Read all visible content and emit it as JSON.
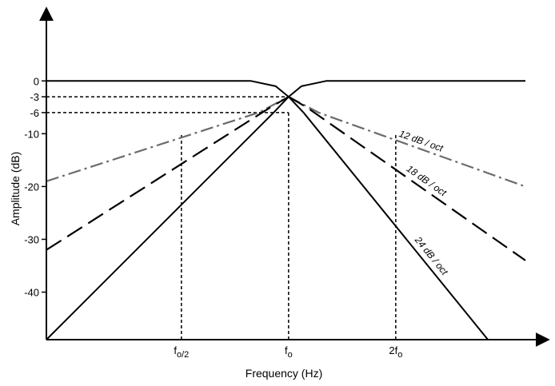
{
  "chart_data": {
    "type": "line",
    "title": "",
    "xlabel": "Frequency (Hz)",
    "ylabel": "Amplitude (dB)",
    "x_unit": "octaves relative to fo",
    "xlim": [
      -2.26,
      2.21
    ],
    "ylim": [
      -49,
      7
    ],
    "y_ticks": [
      {
        "value": 0,
        "label": "0"
      },
      {
        "value": -3,
        "label": "-3"
      },
      {
        "value": -6,
        "label": "-6"
      },
      {
        "value": -10,
        "label": "-10"
      },
      {
        "value": -20,
        "label": "-20"
      },
      {
        "value": -30,
        "label": "-30"
      },
      {
        "value": -40,
        "label": "-40"
      }
    ],
    "x_ticks": [
      {
        "value": -1,
        "base": "f",
        "sub": "o/2"
      },
      {
        "value": 0,
        "base": "f",
        "sub": "o"
      },
      {
        "value": 1,
        "base": "2f",
        "sub": "o"
      }
    ],
    "reference_lines": [
      {
        "orientation": "horizontal",
        "y": -3,
        "x_from": -2.26,
        "x_to": 0
      },
      {
        "orientation": "horizontal",
        "y": -6,
        "x_from": -2.26,
        "x_to": 0
      },
      {
        "orientation": "vertical",
        "x": -1,
        "y_from": -49,
        "y_to": -10
      },
      {
        "orientation": "vertical",
        "x": 0,
        "y_from": -49,
        "y_to": -6
      },
      {
        "orientation": "vertical",
        "x": 1,
        "y_from": -49,
        "y_to": -10
      }
    ],
    "series": [
      {
        "kind": "highpass",
        "slope": 12,
        "style": "dashdot",
        "color": "#6b6b6b",
        "x": [
          -2.26,
          -0.28,
          0
        ],
        "y": [
          -19.0,
          -6.0,
          -3.0
        ]
      },
      {
        "kind": "highpass",
        "slope": 18,
        "style": "longdash",
        "color": "#000000",
        "x": [
          -2.26,
          -0.17,
          0
        ],
        "y": [
          -32.0,
          -5.0,
          -3.0
        ]
      },
      {
        "kind": "highpass",
        "slope": 24,
        "style": "solid",
        "color": "#000000",
        "x": [
          -2.26,
          -0.14,
          0,
          0.12,
          0.35,
          2.21
        ],
        "y": [
          -49.0,
          -6.0,
          -3.0,
          -1.0,
          0,
          0
        ]
      },
      {
        "kind": "lowpass",
        "slope": 12,
        "style": "dashdot",
        "color": "#6b6b6b",
        "label": "12 dB / oct",
        "x": [
          0,
          0.28,
          2.21
        ],
        "y": [
          -3.0,
          -6.0,
          -20.0
        ]
      },
      {
        "kind": "lowpass",
        "slope": 18,
        "style": "longdash",
        "color": "#000000",
        "label": "18 dB / oct",
        "x": [
          0,
          0.17,
          2.21
        ],
        "y": [
          -3.0,
          -5.0,
          -34.0
        ]
      },
      {
        "kind": "lowpass",
        "slope": 24,
        "style": "solid",
        "color": "#000000",
        "label": "24 dB / oct",
        "x": [
          -2.26,
          -0.35,
          -0.12,
          0,
          0.14,
          1.86
        ],
        "y": [
          0,
          0,
          -1.0,
          -3.0,
          -6.0,
          -49.0
        ]
      }
    ],
    "grid": false,
    "legend": "none"
  }
}
